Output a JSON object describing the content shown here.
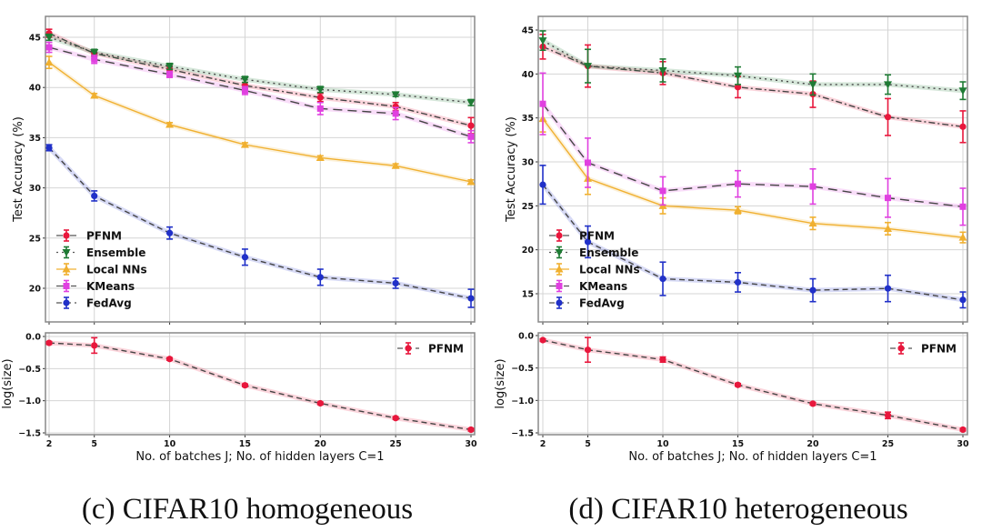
{
  "chart_data": [
    {
      "type": "line",
      "panel": "top",
      "caption": "(c) CIFAR10 homogeneous",
      "xlabel": "No. of batches J; No. of hidden layers C=1",
      "ylabel": "Test Accuracy (%)",
      "x": [
        2,
        5,
        10,
        15,
        20,
        25,
        30
      ],
      "xticks": [
        "2",
        "5",
        "10",
        "15",
        "20",
        "25",
        "30"
      ],
      "yticks": [
        "20",
        "25",
        "30",
        "35",
        "40",
        "45"
      ],
      "ylim": [
        17.5,
        47
      ],
      "grid": true,
      "legend": "lower-left",
      "series": [
        {
          "name": "PFNM",
          "color": "#e8173c",
          "marker": "circle",
          "linestyle": "dashdot",
          "values": [
            45.4,
            43.4,
            41.8,
            40.2,
            39.0,
            38.1,
            36.2
          ],
          "errors": [
            0.4,
            0.3,
            0.3,
            0.3,
            0.4,
            0.4,
            0.8
          ]
        },
        {
          "name": "Ensemble",
          "color": "#1e7b34",
          "marker": "triangle-down",
          "linestyle": "dotted",
          "values": [
            45.0,
            43.5,
            42.1,
            40.8,
            39.8,
            39.3,
            38.5
          ],
          "errors": [
            0.3,
            0.3,
            0.3,
            0.3,
            0.3,
            0.2,
            0.3
          ]
        },
        {
          "name": "Local NNs",
          "color": "#f0b030",
          "marker": "triangle-up",
          "linestyle": "solid",
          "values": [
            42.5,
            39.2,
            36.3,
            34.3,
            33.0,
            32.2,
            30.6
          ],
          "errors": [
            0.6,
            0.2,
            0.2,
            0.2,
            0.2,
            0.2,
            0.2
          ]
        },
        {
          "name": "KMeans",
          "color": "#e040e0",
          "marker": "plus",
          "linestyle": "longdash",
          "values": [
            44.0,
            42.8,
            41.3,
            39.7,
            37.9,
            37.4,
            35.1
          ],
          "errors": [
            0.5,
            0.4,
            0.3,
            0.4,
            0.6,
            0.6,
            0.6
          ]
        },
        {
          "name": "FedAvg",
          "color": "#2030c8",
          "marker": "circle",
          "linestyle": "dashed",
          "values": [
            34.0,
            29.2,
            25.5,
            23.1,
            21.1,
            20.5,
            19.0
          ],
          "errors": [
            0.3,
            0.5,
            0.6,
            0.8,
            0.8,
            0.5,
            0.9
          ]
        }
      ]
    },
    {
      "type": "line",
      "panel": "bottom",
      "caption": "(c) CIFAR10 homogeneous",
      "xlabel": "No. of batches J; No. of hidden layers C=1",
      "ylabel": "log(size)",
      "x": [
        2,
        5,
        10,
        15,
        20,
        25,
        30
      ],
      "xticks": [
        "2",
        "5",
        "10",
        "15",
        "20",
        "25",
        "30"
      ],
      "yticks": [
        "0.0",
        "-0.5",
        "-1.0",
        "-1.5"
      ],
      "ylim": [
        -1.52,
        0.06
      ],
      "grid": true,
      "legend": "top-right",
      "series": [
        {
          "name": "PFNM",
          "color": "#e8173c",
          "marker": "circle",
          "linestyle": "dashed",
          "values": [
            -0.1,
            -0.14,
            -0.35,
            -0.76,
            -1.04,
            -1.27,
            -1.45
          ],
          "errors": [
            0.02,
            0.12,
            0.02,
            0.02,
            0.02,
            0.02,
            0.02
          ]
        }
      ]
    },
    {
      "type": "line",
      "panel": "top",
      "caption": "(d) CIFAR10 heterogeneous",
      "xlabel": "No. of batches J; No. of hidden layers C=1",
      "ylabel": "Test Accuracy (%)",
      "x": [
        2,
        5,
        10,
        15,
        20,
        25,
        30
      ],
      "xticks": [
        "2",
        "5",
        "10",
        "15",
        "20",
        "25",
        "30"
      ],
      "yticks": [
        "15",
        "20",
        "25",
        "30",
        "35",
        "40",
        "45"
      ],
      "ylim": [
        12,
        46.5
      ],
      "grid": true,
      "legend": "lower-left",
      "series": [
        {
          "name": "PFNM",
          "color": "#e8173c",
          "marker": "circle",
          "linestyle": "dashdot",
          "values": [
            43.1,
            40.9,
            40.1,
            38.5,
            37.7,
            35.1,
            34.0
          ],
          "errors": [
            1.4,
            2.4,
            1.3,
            1.2,
            1.5,
            2.1,
            1.8
          ]
        },
        {
          "name": "Ensemble",
          "color": "#1e7b34",
          "marker": "triangle-down",
          "linestyle": "dotted",
          "values": [
            43.8,
            40.9,
            40.4,
            39.8,
            38.8,
            38.8,
            38.1
          ],
          "errors": [
            1.1,
            1.9,
            1.3,
            1.0,
            1.2,
            1.1,
            1.0
          ]
        },
        {
          "name": "Local NNs",
          "color": "#f0b030",
          "marker": "triangle-up",
          "linestyle": "solid",
          "values": [
            34.9,
            28.1,
            25.0,
            24.5,
            23.0,
            22.4,
            21.4
          ],
          "errors": [
            1.5,
            1.8,
            0.9,
            0.4,
            0.7,
            0.7,
            0.6
          ]
        },
        {
          "name": "KMeans",
          "color": "#e040e0",
          "marker": "plus",
          "linestyle": "longdash",
          "values": [
            36.6,
            29.9,
            26.7,
            27.5,
            27.2,
            25.9,
            24.9
          ],
          "errors": [
            3.5,
            2.8,
            1.6,
            1.5,
            2.0,
            2.2,
            2.1
          ]
        },
        {
          "name": "FedAvg",
          "color": "#2030c8",
          "marker": "circle",
          "linestyle": "dashed",
          "values": [
            27.4,
            20.9,
            16.7,
            16.3,
            15.4,
            15.6,
            14.3
          ],
          "errors": [
            2.2,
            1.8,
            1.9,
            1.1,
            1.3,
            1.5,
            0.9
          ]
        }
      ]
    },
    {
      "type": "line",
      "panel": "bottom",
      "caption": "(d) CIFAR10 heterogeneous",
      "xlabel": "No. of batches J; No. of hidden layers C=1",
      "ylabel": "log(size)",
      "x": [
        2,
        5,
        10,
        15,
        20,
        25,
        30
      ],
      "xticks": [
        "2",
        "5",
        "10",
        "15",
        "20",
        "25",
        "30"
      ],
      "yticks": [
        "0.0",
        "-0.5",
        "-1.0",
        "-1.5"
      ],
      "ylim": [
        -1.52,
        0.06
      ],
      "grid": true,
      "legend": "top-right",
      "series": [
        {
          "name": "PFNM",
          "color": "#e8173c",
          "marker": "circle",
          "linestyle": "dashed",
          "values": [
            -0.07,
            -0.22,
            -0.37,
            -0.76,
            -1.05,
            -1.23,
            -1.45
          ],
          "errors": [
            0.02,
            0.19,
            0.04,
            0.02,
            0.02,
            0.05,
            0.02
          ]
        }
      ]
    }
  ],
  "captions": {
    "left": "(c) CIFAR10 homogeneous",
    "right": "(d) CIFAR10 heterogeneous"
  }
}
